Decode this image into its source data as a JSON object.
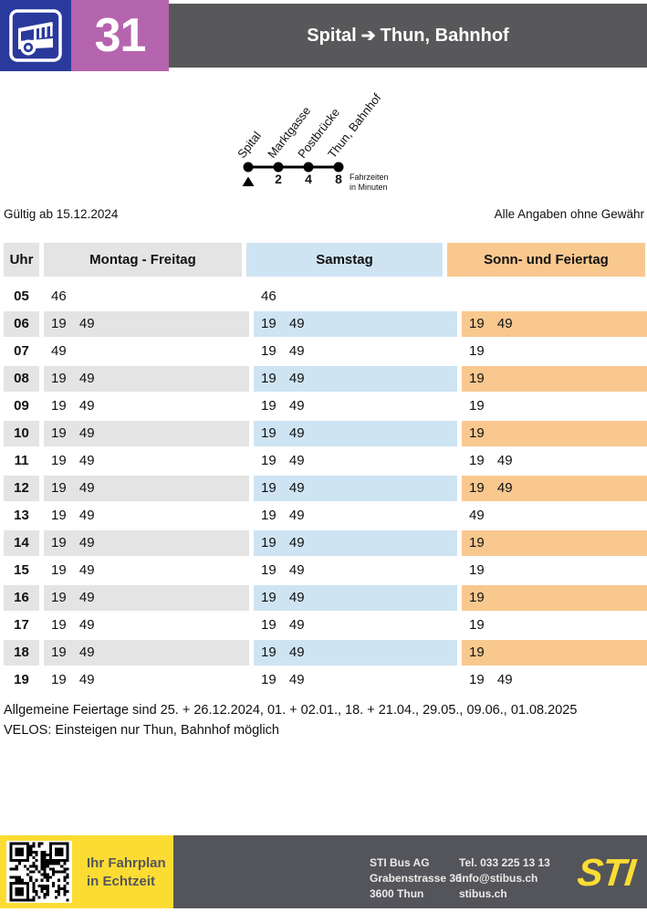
{
  "header": {
    "line_number": "31",
    "route_origin": "Spital",
    "route_arrow": "➔",
    "route_destination": "Thun, Bahnhof"
  },
  "diagram": {
    "stops": [
      {
        "name": "Spital",
        "time": ""
      },
      {
        "name": "Marktgasse",
        "time": "2"
      },
      {
        "name": "Postbrücke",
        "time": "4"
      },
      {
        "name": "Thun, Bahnhof",
        "time": "8"
      }
    ],
    "legend_line1": "Fahrzeiten",
    "legend_line2": "in Minuten"
  },
  "validity": {
    "left": "Gültig ab 15.12.2024",
    "right": "Alle Angaben ohne Gewähr"
  },
  "table": {
    "headers": {
      "hour": "Uhr",
      "mf": "Montag - Freitag",
      "sa": "Samstag",
      "so": "Sonn- und Feiertag"
    },
    "rows": [
      {
        "hour": "05",
        "mf": "46",
        "sa": "46",
        "so": ""
      },
      {
        "hour": "06",
        "mf": "19 49",
        "sa": "19 49",
        "so": "19 49"
      },
      {
        "hour": "07",
        "mf": "49",
        "sa": "19 49",
        "so": "19"
      },
      {
        "hour": "08",
        "mf": "19 49",
        "sa": "19 49",
        "so": "19"
      },
      {
        "hour": "09",
        "mf": "19 49",
        "sa": "19 49",
        "so": "19"
      },
      {
        "hour": "10",
        "mf": "19 49",
        "sa": "19 49",
        "so": "19"
      },
      {
        "hour": "11",
        "mf": "19 49",
        "sa": "19 49",
        "so": "19 49"
      },
      {
        "hour": "12",
        "mf": "19 49",
        "sa": "19 49",
        "so": "19 49"
      },
      {
        "hour": "13",
        "mf": "19 49",
        "sa": "19 49",
        "so": "49"
      },
      {
        "hour": "14",
        "mf": "19 49",
        "sa": "19 49",
        "so": "19"
      },
      {
        "hour": "15",
        "mf": "19 49",
        "sa": "19 49",
        "so": "19"
      },
      {
        "hour": "16",
        "mf": "19 49",
        "sa": "19 49",
        "so": "19"
      },
      {
        "hour": "17",
        "mf": "19 49",
        "sa": "19 49",
        "so": "19"
      },
      {
        "hour": "18",
        "mf": "19 49",
        "sa": "19 49",
        "so": "19"
      },
      {
        "hour": "19",
        "mf": "19 49",
        "sa": "19 49",
        "so": "19 49"
      }
    ]
  },
  "notes": [
    "Allgemeine Feiertage sind 25. + 26.12.2024, 01. + 02.01., 18. + 21.04., 29.05., 09.06., 01.08.2025",
    "VELOS: Einsteigen nur Thun, Bahnhof möglich"
  ],
  "footer": {
    "realtime_line1": "Ihr Fahrplan",
    "realtime_line2": "in Echtzeit",
    "address": [
      "STI Bus AG",
      "Grabenstrasse 36",
      "3600 Thun"
    ],
    "contact": [
      "Tel. 033 225 13 13",
      "info@stibus.ch",
      "stibus.ch"
    ],
    "logo": "STI"
  },
  "colors": {
    "icon_blue": "#2a3a9c",
    "line_badge_purple": "#b564ae",
    "header_bar_gray": "#58585a",
    "weekday_gray": "#e4e4e4",
    "saturday_blue": "#cfe4f3",
    "sunday_orange": "#f9c88f",
    "footer_yellow": "#fcdc33",
    "footer_gray": "#54555b"
  }
}
